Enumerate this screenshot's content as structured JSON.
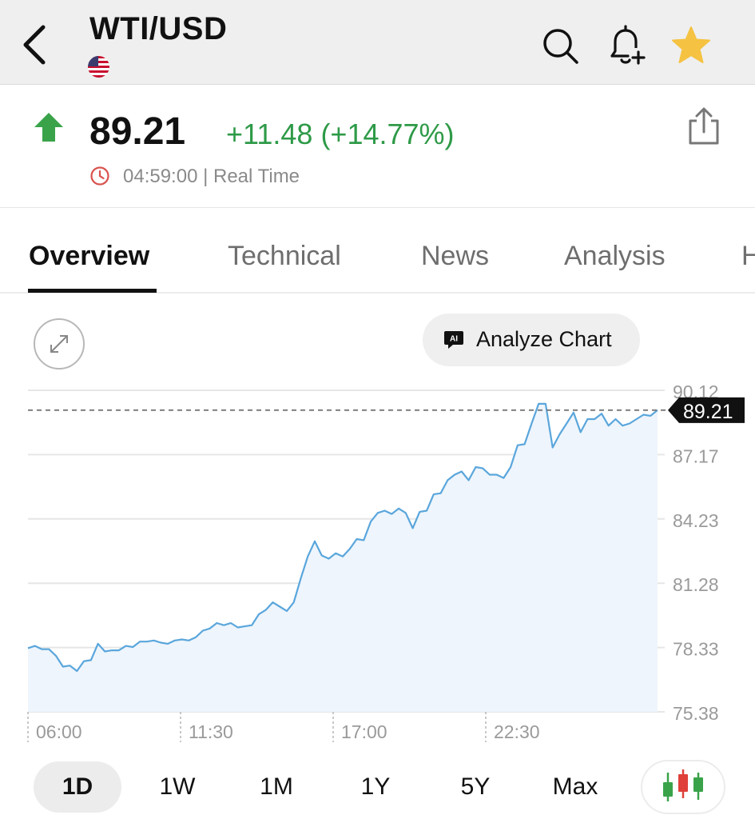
{
  "header": {
    "title": "WTI/USD",
    "flag": "us-flag-icon",
    "icons": [
      "back-arrow-icon",
      "search-icon",
      "bell-plus-icon",
      "star-icon"
    ]
  },
  "quote": {
    "price": "89.21",
    "change": "+11.48 (+14.77%)",
    "direction": "up",
    "time_text": "04:59:00 | Real Time",
    "colors": {
      "up": "#2e9a47",
      "clock": "#d9534f"
    }
  },
  "tabs": [
    {
      "label": "Overview",
      "active": true
    },
    {
      "label": "Technical",
      "active": false
    },
    {
      "label": "News",
      "active": false
    },
    {
      "label": "Analysis",
      "active": false
    },
    {
      "label": "H",
      "active": false
    }
  ],
  "chart_controls": {
    "expand_icon": "expand-arrows-icon",
    "ai_badge": "AI",
    "analyze_label": "Analyze Chart"
  },
  "chart_data": {
    "type": "area",
    "y_ticks": [
      "90.12",
      "87.17",
      "84.23",
      "81.28",
      "78.33",
      "75.38"
    ],
    "ylim": [
      75.38,
      90.12
    ],
    "x_ticks": [
      "06:00",
      "11:30",
      "17:00",
      "22:30"
    ],
    "current_value_label": "89.21",
    "current_value": 89.21,
    "line_color": "#5aa6dc",
    "series": [
      {
        "values": [
          78.3,
          78.4,
          78.25,
          78.25,
          77.95,
          77.45,
          77.5,
          77.25,
          77.7,
          77.75,
          78.5,
          78.15,
          78.2,
          78.2,
          78.4,
          78.35,
          78.6,
          78.6,
          78.65,
          78.55,
          78.5,
          78.65,
          78.7,
          78.65,
          78.8,
          79.1,
          79.2,
          79.45,
          79.35,
          79.45,
          79.25,
          79.3,
          79.35,
          79.85,
          80.05,
          80.4,
          80.2,
          80.0,
          80.4,
          81.5,
          82.5,
          83.2,
          82.55,
          82.4,
          82.65,
          82.5,
          82.85,
          83.3,
          83.25,
          84.1,
          84.5,
          84.6,
          84.45,
          84.7,
          84.5,
          83.8,
          84.55,
          84.6,
          85.35,
          85.4,
          86.0,
          86.25,
          86.4,
          86.0,
          86.6,
          86.55,
          86.25,
          86.25,
          86.1,
          86.6,
          87.6,
          87.65,
          88.6,
          89.5,
          89.5,
          87.5,
          88.1,
          88.6,
          89.1,
          88.2,
          88.8,
          88.8,
          89.05,
          88.5,
          88.8,
          88.5,
          88.6,
          88.8,
          89.0,
          88.95,
          89.21
        ]
      }
    ]
  },
  "ranges": [
    {
      "label": "1D",
      "active": true
    },
    {
      "label": "1W",
      "active": false
    },
    {
      "label": "1M",
      "active": false
    },
    {
      "label": "1Y",
      "active": false
    },
    {
      "label": "5Y",
      "active": false
    },
    {
      "label": "Max",
      "active": false
    }
  ],
  "candle_icon": "candlestick-icon"
}
